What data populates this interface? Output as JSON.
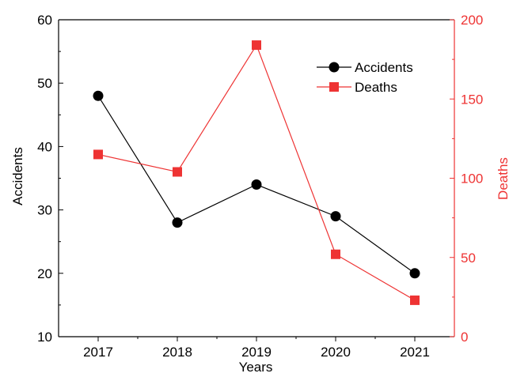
{
  "chart_data": {
    "type": "line",
    "categories": [
      "2017",
      "2018",
      "2019",
      "2020",
      "2021"
    ],
    "xlabel": "Years",
    "y_left": {
      "label": "Accidents",
      "range": [
        10,
        60
      ],
      "ticks": [
        10,
        20,
        30,
        40,
        50,
        60
      ],
      "tick_labels": [
        "10",
        "20",
        "30",
        "40",
        "50",
        "60"
      ]
    },
    "y_right": {
      "label": "Deaths",
      "range": [
        0,
        200
      ],
      "ticks": [
        0,
        50,
        100,
        150,
        200
      ],
      "tick_labels": [
        "0",
        "50",
        "100",
        "150",
        "200"
      ],
      "color": "#ee3333"
    },
    "series": [
      {
        "name": "Accidents",
        "axis": "left",
        "values": [
          48,
          28,
          34,
          29,
          20
        ],
        "color": "#000000",
        "marker": "circle"
      },
      {
        "name": "Deaths",
        "axis": "right",
        "values": [
          115,
          104,
          184,
          52,
          23
        ],
        "color": "#ee3333",
        "marker": "square"
      }
    ],
    "legend_position": "top-right",
    "grid": false
  }
}
